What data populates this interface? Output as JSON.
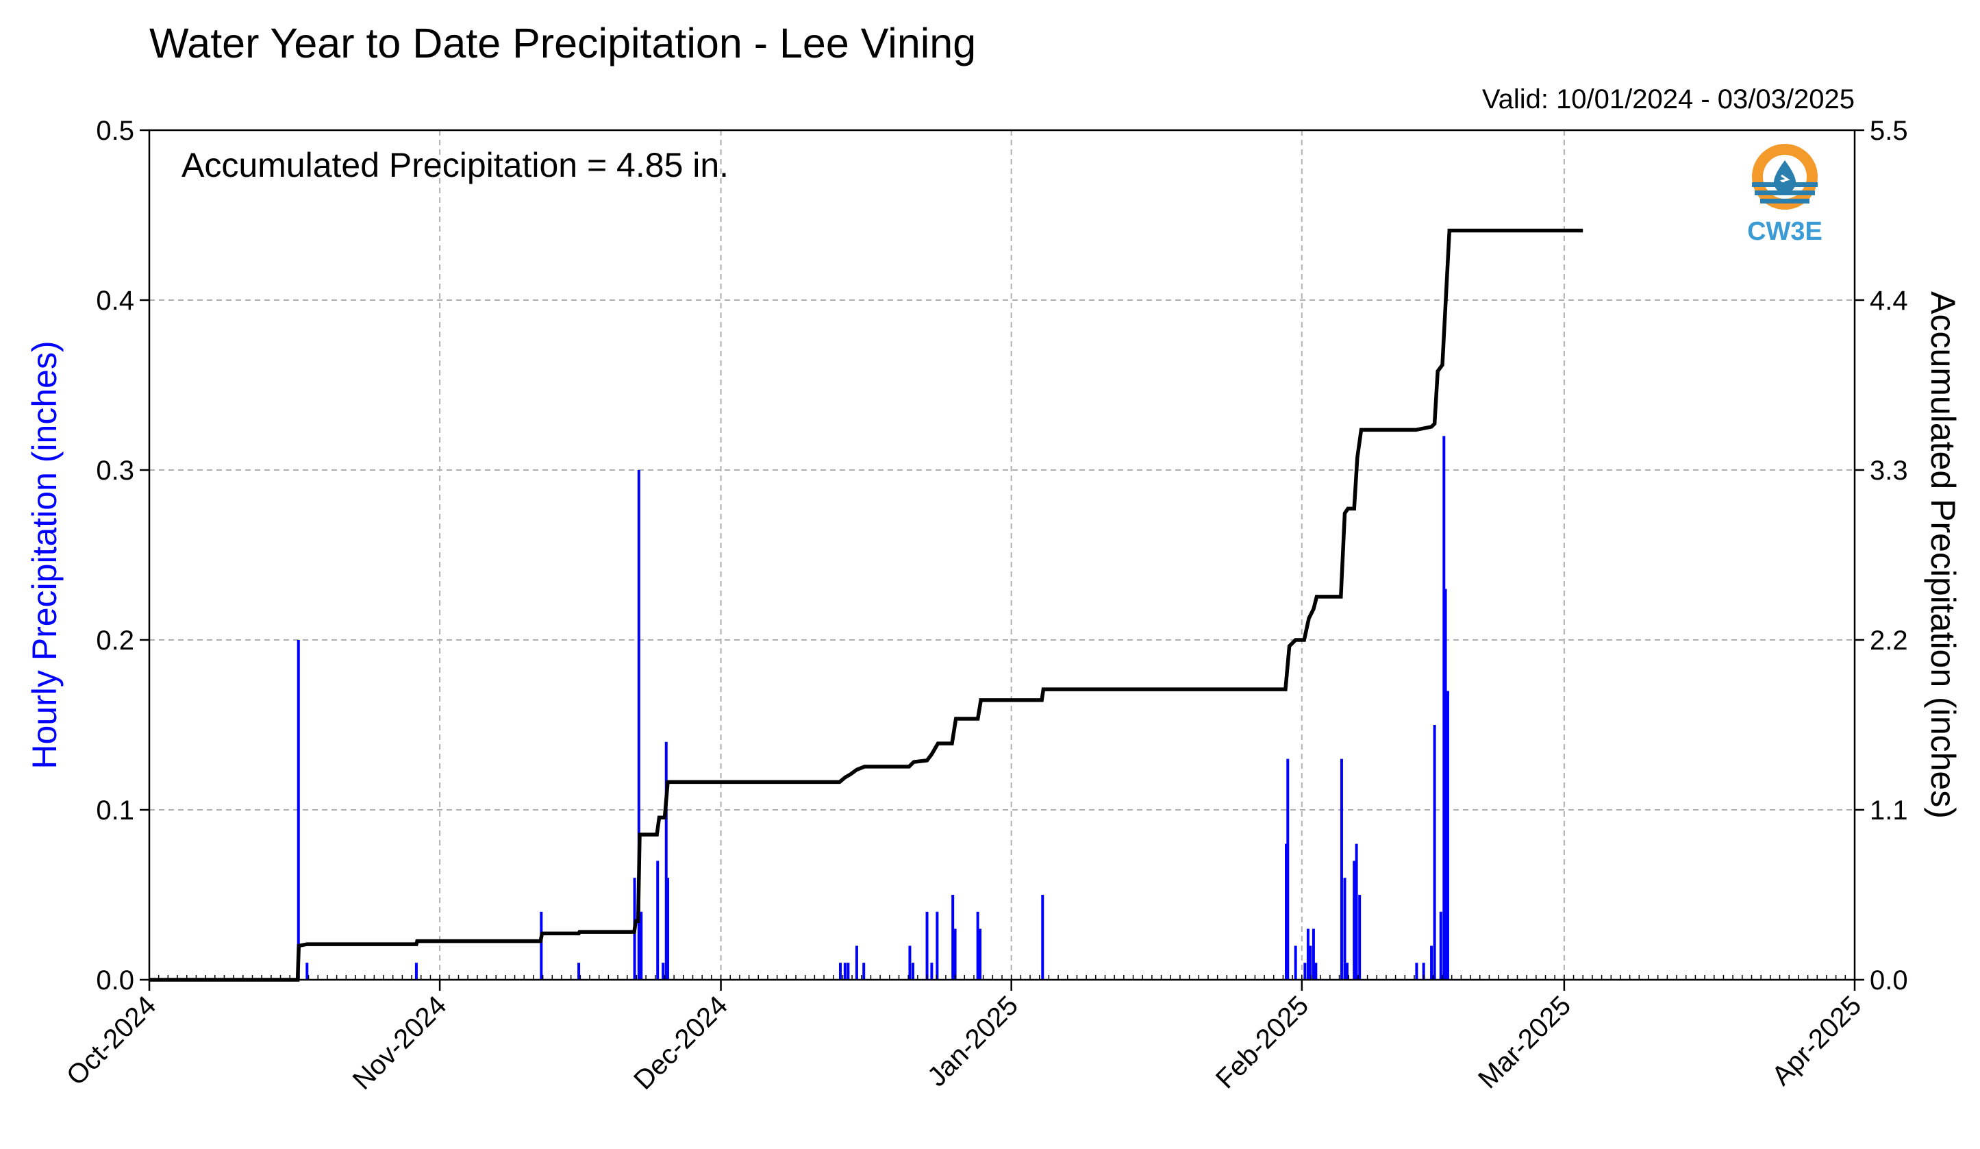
{
  "title": "Water Year to Date Precipitation - Lee Vining",
  "valid_label": "Valid: 10/01/2024 - 03/03/2025",
  "annotation": "Accumulated Precipitation = 4.85 in.",
  "logo": {
    "text": "CW3E",
    "icon": "water-drop-logo-icon",
    "colors": [
      "#f39a2b",
      "#2a7fae",
      "#3a9bd5"
    ]
  },
  "colors": {
    "bars": "#0000ff",
    "line": "#000000",
    "ylabel_left": "#0000ff",
    "grid": "#b0b0b0"
  },
  "chart_data": {
    "type": "bar+line",
    "title": "Water Year to Date Precipitation - Lee Vining",
    "subtitle": "Valid: 10/01/2024 - 03/03/2025",
    "ylabel": "Hourly Precipitation (inches)",
    "y2label": "Accumulated Precipitation (inches)",
    "xlim": [
      "2024-10-01",
      "2025-04-01"
    ],
    "ylim": [
      0,
      0.5
    ],
    "y2lim": [
      0,
      5.5
    ],
    "yticks": [
      "0.0",
      "0.1",
      "0.2",
      "0.3",
      "0.4",
      "0.5"
    ],
    "y2ticks": [
      "0.0",
      "1.1",
      "2.2",
      "3.3",
      "4.4",
      "5.5"
    ],
    "xticks": [
      {
        "date": "2024-10-01",
        "label": "Oct-2024"
      },
      {
        "date": "2024-11-01",
        "label": "Nov-2024"
      },
      {
        "date": "2024-12-01",
        "label": "Dec-2024"
      },
      {
        "date": "2025-01-01",
        "label": "Jan-2025"
      },
      {
        "date": "2025-02-01",
        "label": "Feb-2025"
      },
      {
        "date": "2025-03-01",
        "label": "Mar-2025"
      },
      {
        "date": "2025-04-01",
        "label": "Apr-2025"
      }
    ],
    "grid": true,
    "series": [
      {
        "kind": "bar",
        "axis": "left",
        "points": [
          [
            "2024-10-16T22:00",
            0.2
          ],
          [
            "2024-10-17T20:00",
            0.01
          ],
          [
            "2024-10-29T12:00",
            0.01
          ],
          [
            "2024-11-11T20:00",
            0.04
          ],
          [
            "2024-11-15T20:00",
            0.01
          ],
          [
            "2024-11-21T19:00",
            0.06
          ],
          [
            "2024-11-22T06:00",
            0.3
          ],
          [
            "2024-11-22T12:00",
            0.04
          ],
          [
            "2024-11-24T06:00",
            0.07
          ],
          [
            "2024-11-24T20:00",
            0.01
          ],
          [
            "2024-11-25T04:00",
            0.14
          ],
          [
            "2024-11-25T08:00",
            0.06
          ],
          [
            "2024-12-13T18:00",
            0.01
          ],
          [
            "2024-12-14T06:00",
            0.01
          ],
          [
            "2024-12-14T14:00",
            0.01
          ],
          [
            "2024-12-15T12:00",
            0.02
          ],
          [
            "2024-12-16T06:00",
            0.01
          ],
          [
            "2024-12-21T04:00",
            0.02
          ],
          [
            "2024-12-21T12:00",
            0.01
          ],
          [
            "2024-12-23T00:00",
            0.04
          ],
          [
            "2024-12-23T12:00",
            0.01
          ],
          [
            "2024-12-24T02:00",
            0.04
          ],
          [
            "2024-12-25T18:00",
            0.05
          ],
          [
            "2024-12-26T00:00",
            0.03
          ],
          [
            "2024-12-28T10:00",
            0.04
          ],
          [
            "2024-12-28T16:00",
            0.03
          ],
          [
            "2025-01-04T08:00",
            0.05
          ],
          [
            "2025-01-30T08:00",
            0.08
          ],
          [
            "2025-01-30T12:00",
            0.13
          ],
          [
            "2025-01-31T08:00",
            0.02
          ],
          [
            "2025-02-01T08:00",
            0.01
          ],
          [
            "2025-02-01T16:00",
            0.03
          ],
          [
            "2025-02-01T22:00",
            0.02
          ],
          [
            "2025-02-02T06:00",
            0.03
          ],
          [
            "2025-02-02T12:00",
            0.01
          ],
          [
            "2025-02-05T06:00",
            0.13
          ],
          [
            "2025-02-05T14:00",
            0.06
          ],
          [
            "2025-02-05T20:00",
            0.01
          ],
          [
            "2025-02-06T14:00",
            0.07
          ],
          [
            "2025-02-06T20:00",
            0.08
          ],
          [
            "2025-02-07T04:00",
            0.05
          ],
          [
            "2025-02-13T06:00",
            0.01
          ],
          [
            "2025-02-14T00:00",
            0.01
          ],
          [
            "2025-02-14T20:00",
            0.02
          ],
          [
            "2025-02-15T04:00",
            0.15
          ],
          [
            "2025-02-15T20:00",
            0.04
          ],
          [
            "2025-02-16T04:00",
            0.32
          ],
          [
            "2025-02-16T08:00",
            0.23
          ],
          [
            "2025-02-16T14:00",
            0.17
          ]
        ]
      },
      {
        "kind": "line",
        "axis": "right",
        "name": "Accumulated Precipitation",
        "points": [
          [
            "2024-10-01T00:00",
            0.0
          ],
          [
            "2024-10-16T20:00",
            0.0
          ],
          [
            "2024-10-16T23:00",
            0.22
          ],
          [
            "2024-10-17T20:00",
            0.23
          ],
          [
            "2024-10-29T12:00",
            0.23
          ],
          [
            "2024-10-29T14:00",
            0.25
          ],
          [
            "2024-11-11T18:00",
            0.25
          ],
          [
            "2024-11-11T22:00",
            0.3
          ],
          [
            "2024-11-15T20:00",
            0.3
          ],
          [
            "2024-11-15T22:00",
            0.31
          ],
          [
            "2024-11-21T18:00",
            0.31
          ],
          [
            "2024-11-21T22:00",
            0.38
          ],
          [
            "2024-11-22T04:00",
            0.38
          ],
          [
            "2024-11-22T08:00",
            0.94
          ],
          [
            "2024-11-24T04:00",
            0.94
          ],
          [
            "2024-11-24T10:00",
            1.05
          ],
          [
            "2024-11-25T00:00",
            1.05
          ],
          [
            "2024-11-25T08:00",
            1.28
          ],
          [
            "2024-12-13T16:00",
            1.28
          ],
          [
            "2024-12-14T06:00",
            1.31
          ],
          [
            "2024-12-14T20:00",
            1.33
          ],
          [
            "2024-12-15T12:00",
            1.36
          ],
          [
            "2024-12-16T08:00",
            1.38
          ],
          [
            "2024-12-21T02:00",
            1.38
          ],
          [
            "2024-12-21T14:00",
            1.41
          ],
          [
            "2024-12-23T00:00",
            1.42
          ],
          [
            "2024-12-23T12:00",
            1.46
          ],
          [
            "2024-12-24T04:00",
            1.53
          ],
          [
            "2024-12-25T16:00",
            1.53
          ],
          [
            "2024-12-26T02:00",
            1.69
          ],
          [
            "2024-12-28T10:00",
            1.69
          ],
          [
            "2024-12-28T18:00",
            1.81
          ],
          [
            "2025-01-04T06:00",
            1.81
          ],
          [
            "2025-01-04T10:00",
            1.88
          ],
          [
            "2025-01-30T06:00",
            1.88
          ],
          [
            "2025-01-30T16:00",
            2.16
          ],
          [
            "2025-01-31T08:00",
            2.2
          ],
          [
            "2025-02-01T06:00",
            2.2
          ],
          [
            "2025-02-01T18:00",
            2.34
          ],
          [
            "2025-02-02T06:00",
            2.4
          ],
          [
            "2025-02-02T14:00",
            2.48
          ],
          [
            "2025-02-05T04:00",
            2.48
          ],
          [
            "2025-02-05T14:00",
            3.02
          ],
          [
            "2025-02-05T22:00",
            3.05
          ],
          [
            "2025-02-06T14:00",
            3.05
          ],
          [
            "2025-02-06T22:00",
            3.38
          ],
          [
            "2025-02-07T08:00",
            3.56
          ],
          [
            "2025-02-13T04:00",
            3.56
          ],
          [
            "2025-02-14T20:00",
            3.58
          ],
          [
            "2025-02-15T04:00",
            3.6
          ],
          [
            "2025-02-15T12:00",
            3.94
          ],
          [
            "2025-02-16T00:00",
            3.98
          ],
          [
            "2025-02-16T18:00",
            4.85
          ],
          [
            "2025-03-03T00:00",
            4.85
          ]
        ]
      }
    ]
  }
}
